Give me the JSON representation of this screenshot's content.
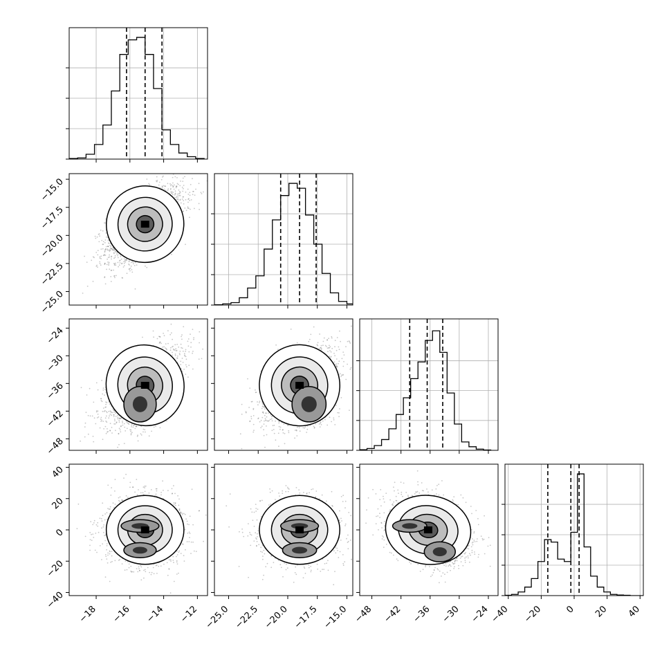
{
  "chart_data": {
    "type": "corner",
    "params": 4,
    "ranges": [
      [
        -19.6,
        -11.4
      ],
      [
        -26.2,
        -14.5
      ],
      [
        -50.5,
        -22.0
      ],
      [
        -42.0,
        42.0
      ]
    ],
    "ticks": [
      [
        "−18",
        "−16",
        "−14",
        "−12"
      ],
      [
        "−25.0",
        "−22.5",
        "−20.0",
        "−17.5",
        "−15.0"
      ],
      [
        "−48",
        "−42",
        "−36",
        "−30",
        "−24"
      ],
      [
        "−40",
        "−20",
        "0",
        "20",
        "40"
      ]
    ],
    "tick_values": [
      [
        -18,
        -16,
        -14,
        -12
      ],
      [
        -25,
        -22.5,
        -20,
        -17.5,
        -15
      ],
      [
        -48,
        -42,
        -36,
        -30,
        -24
      ],
      [
        -40,
        -20,
        0,
        20,
        40
      ]
    ],
    "quantiles": [
      [
        -16.2,
        -15.1,
        -14.1
      ],
      [
        -20.6,
        -19.0,
        -17.6
      ],
      [
        -40.2,
        -36.6,
        -33.4
      ],
      [
        -16.0,
        -2.0,
        3.0
      ]
    ],
    "histograms": [
      {
        "param": 0,
        "edges": [
          -19.6,
          -19.1,
          -18.6,
          -18.1,
          -17.6,
          -17.1,
          -16.6,
          -16.1,
          -15.6,
          -15.1,
          -14.6,
          -14.1,
          -13.6,
          -13.1,
          -12.6,
          -12.1,
          -11.6
        ],
        "counts": [
          0.5,
          1,
          4,
          12,
          28,
          56,
          86,
          98,
          100,
          86,
          58,
          24,
          12,
          5,
          2,
          0.5
        ],
        "ylim": [
          0,
          108
        ]
      },
      {
        "param": 1,
        "edges": [
          -26.2,
          -25.5,
          -24.8,
          -24.1,
          -23.4,
          -22.7,
          -22.0,
          -21.3,
          -20.6,
          -19.9,
          -19.2,
          -18.5,
          -17.8,
          -17.1,
          -16.4,
          -15.7,
          -15.0,
          -14.5
        ],
        "counts": [
          0.3,
          1,
          2,
          6,
          14,
          24,
          46,
          70,
          90,
          100,
          96,
          74,
          50,
          26,
          10,
          3,
          1
        ],
        "ylim": [
          0,
          108
        ]
      },
      {
        "param": 2,
        "edges": [
          -50.5,
          -49.0,
          -47.5,
          -46.0,
          -44.5,
          -43.0,
          -41.5,
          -40.0,
          -38.5,
          -37.0,
          -35.5,
          -34.0,
          -32.5,
          -31.0,
          -29.5,
          -28.0,
          -26.5,
          -25.0,
          -23.5
        ],
        "counts": [
          0.5,
          1.5,
          4,
          9,
          18,
          30,
          44,
          60,
          74,
          92,
          100,
          82,
          48,
          22,
          7,
          3,
          1,
          0.3
        ],
        "ylim": [
          0,
          110
        ]
      },
      {
        "param": 3,
        "edges": [
          -42,
          -38,
          -34,
          -30,
          -26,
          -22,
          -18,
          -14,
          -10,
          -6,
          -2,
          2,
          6,
          10,
          14,
          18,
          22,
          26,
          30,
          34,
          38,
          42
        ],
        "counts": [
          0.3,
          1,
          3,
          7,
          14,
          28,
          46,
          44,
          30,
          28,
          52,
          100,
          40,
          16,
          7,
          3,
          1,
          0.5,
          0.3,
          0,
          0
        ],
        "ylim": [
          0,
          108
        ]
      }
    ],
    "scatter": [
      {
        "pair": [
          0,
          1
        ],
        "mean": [
          -15.1,
          -19.0
        ],
        "sd": [
          1.15,
          1.7
        ],
        "rho": 0.6,
        "blobs": []
      },
      {
        "pair": [
          0,
          2
        ],
        "mean": [
          -15.1,
          -36.4
        ],
        "sd": [
          1.15,
          4.4
        ],
        "rho": 0.6,
        "blobs": [
          [
            -15.4,
            -40.5,
            0.6,
            2.4
          ]
        ]
      },
      {
        "pair": [
          1,
          2
        ],
        "mean": [
          -19.0,
          -36.4
        ],
        "sd": [
          1.7,
          4.4
        ],
        "rho": 0.6,
        "blobs": [
          [
            -18.2,
            -40.5,
            0.9,
            2.4
          ]
        ]
      },
      {
        "pair": [
          0,
          3
        ],
        "mean": [
          -15.1,
          0.0
        ],
        "sd": [
          1.15,
          11.0
        ],
        "rho": 0.0,
        "blobs": [
          [
            -15.4,
            2.5,
            0.7,
            2.5
          ],
          [
            -15.4,
            -13.0,
            0.6,
            3.0
          ]
        ]
      },
      {
        "pair": [
          1,
          3
        ],
        "mean": [
          -19.0,
          0.0
        ],
        "sd": [
          1.7,
          11.0
        ],
        "rho": 0.0,
        "blobs": [
          [
            -19.0,
            2.5,
            1.0,
            2.5
          ],
          [
            -19.0,
            -13.0,
            0.9,
            3.0
          ]
        ]
      },
      {
        "pair": [
          2,
          3
        ],
        "mean": [
          -36.4,
          0.0
        ],
        "sd": [
          4.4,
          11.0
        ],
        "rho": -0.3,
        "blobs": [
          [
            -40.2,
            2.5,
            2.2,
            2.5
          ],
          [
            -34.0,
            -14.0,
            2.0,
            4.0
          ]
        ]
      }
    ],
    "colors": {
      "line": "#000000",
      "grid": "#b0b0b0",
      "points": "#333333",
      "hist": "#000000"
    },
    "grid": true
  }
}
